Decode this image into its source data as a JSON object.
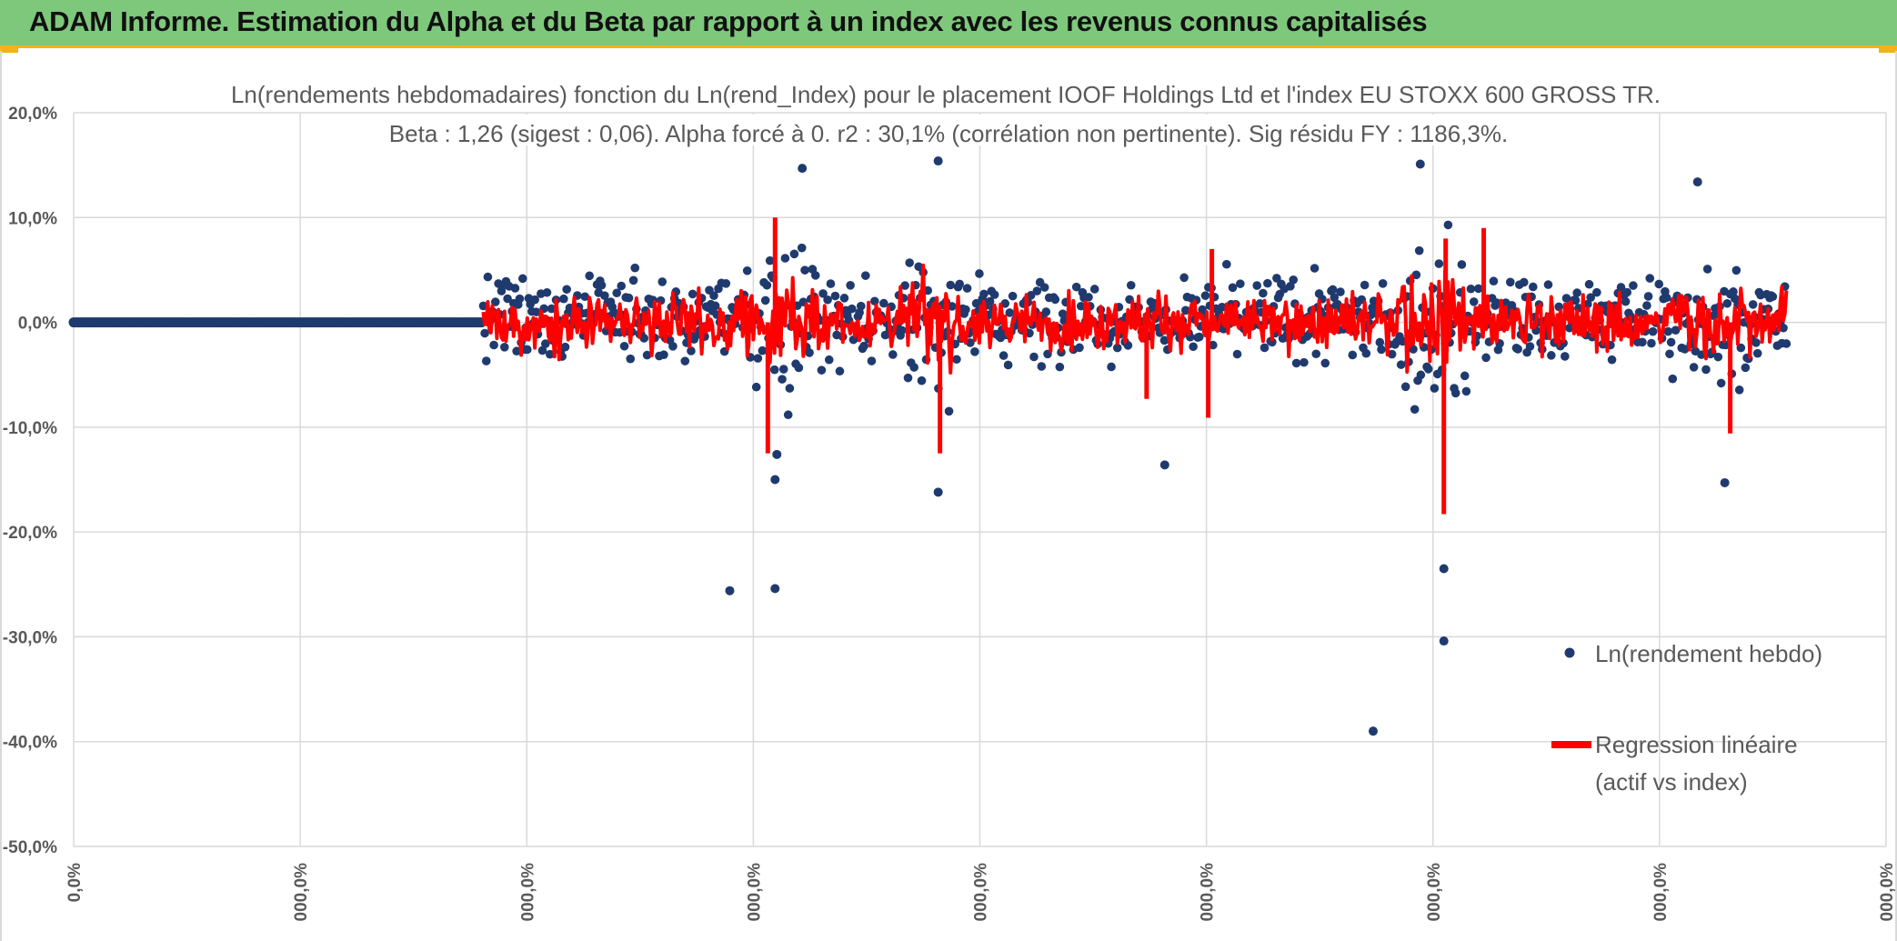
{
  "header": {
    "title": "ADAM Informe. Estimation du Alpha et du Beta par rapport à un index avec les revenus connus capitalisés"
  },
  "colors": {
    "banner_bg": "#7ec87c",
    "banner_accent": "#f2b21b",
    "points": "#1f3a6e",
    "regression": "#ff0000",
    "grid": "#d9d9d9",
    "text": "#595959"
  },
  "chart_data": {
    "type": "scatter",
    "title": "Ln(rendements hebdomadaires) fonction du Ln(rend_Index) pour le placement IOOF Holdings Ltd et l'index EU STOXX 600 GROSS TR.",
    "subtitle": "Beta : 1,26 (sigest : 0,06). Alpha forcé à 0. r2 : 30,1% (corrélation non pertinente). Sig résidu FY : 1186,3%.",
    "xlabel": "",
    "ylabel": "",
    "ylim": [
      -50,
      20
    ],
    "y_ticks": [
      {
        "value": 20,
        "label": "20,0%"
      },
      {
        "value": 10,
        "label": "10,0%"
      },
      {
        "value": 0,
        "label": "0,0%"
      },
      {
        "value": -10,
        "label": "-10,0%"
      },
      {
        "value": -20,
        "label": "-20,0%"
      },
      {
        "value": -30,
        "label": "-30,0%"
      },
      {
        "value": -40,
        "label": "-40,0%"
      },
      {
        "value": -50,
        "label": "-50,0%"
      }
    ],
    "x_ticks": [
      "0,0%",
      "000,0%",
      "000,0%",
      "000,0%",
      "000,0%",
      "000,0%",
      "000,0%",
      "000,0%",
      "000,0%"
    ],
    "grid": true,
    "legend_position": "right",
    "series": [
      {
        "name": "Ln(rendement hebdo)",
        "kind": "points"
      },
      {
        "name": "Regression linéaire (actif vs index)",
        "kind": "line"
      }
    ],
    "zero_run_end": 0.225,
    "data_start": 0.226,
    "data_end": 0.945,
    "notable_outliers": [
      {
        "x": 0.362,
        "y": -25.6
      },
      {
        "x": 0.387,
        "y": -25.4
      },
      {
        "x": 0.387,
        "y": -15.0
      },
      {
        "x": 0.477,
        "y": -16.2
      },
      {
        "x": 0.477,
        "y": 15.4
      },
      {
        "x": 0.717,
        "y": -39.0
      },
      {
        "x": 0.756,
        "y": -23.5
      },
      {
        "x": 0.756,
        "y": -30.4
      },
      {
        "x": 0.743,
        "y": 15.1
      },
      {
        "x": 0.602,
        "y": -13.6
      },
      {
        "x": 0.911,
        "y": -15.3
      },
      {
        "x": 0.896,
        "y": 13.4
      },
      {
        "x": 0.402,
        "y": 14.7
      },
      {
        "x": 0.388,
        "y": -12.6
      }
    ],
    "regression_spikes": [
      {
        "x": 0.383,
        "y": -12.5
      },
      {
        "x": 0.387,
        "y": 10.0
      },
      {
        "x": 0.478,
        "y": -12.5
      },
      {
        "x": 0.756,
        "y": -18.3
      },
      {
        "x": 0.757,
        "y": 8.0
      },
      {
        "x": 0.778,
        "y": 9.0
      },
      {
        "x": 0.914,
        "y": -10.6
      },
      {
        "x": 0.592,
        "y": -7.3
      },
      {
        "x": 0.626,
        "y": -9.1
      },
      {
        "x": 0.628,
        "y": 7.0
      }
    ],
    "legend": {
      "points_label": "Ln(rendement hebdo)",
      "line_label_1": "Regression linéaire",
      "line_label_2": "(actif vs index)"
    }
  }
}
